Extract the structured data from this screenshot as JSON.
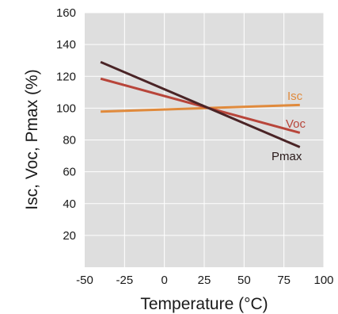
{
  "chart_data": {
    "type": "line",
    "title": "",
    "xlabel": "Temperature (°C)",
    "ylabel": "Isc, Voc, Pmax (%)",
    "xlim": [
      -50,
      100
    ],
    "ylim": [
      0,
      160
    ],
    "xticks": [
      -50,
      -25,
      0,
      25,
      50,
      75,
      100
    ],
    "yticks": [
      20,
      40,
      60,
      80,
      100,
      120,
      140,
      160
    ],
    "grid": true,
    "legend": "inline labels",
    "series": [
      {
        "name": "Isc",
        "color": "#e08a3c",
        "x": [
          -40,
          85
        ],
        "y": [
          97.8,
          102
        ]
      },
      {
        "name": "Voc",
        "color": "#b8453a",
        "x": [
          -40,
          85
        ],
        "y": [
          118.5,
          84.5
        ]
      },
      {
        "name": "Pmax",
        "color": "#4a2426",
        "x": [
          -40,
          85
        ],
        "y": [
          129,
          75.5
        ]
      }
    ]
  }
}
